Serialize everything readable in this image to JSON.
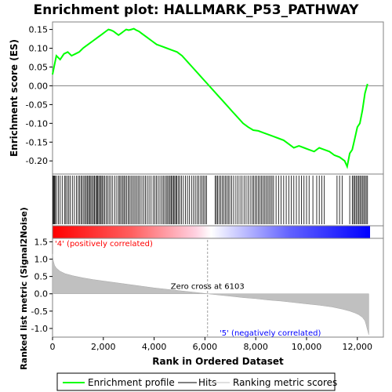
{
  "chart_data": {
    "type": "line",
    "title": "Enrichment plot: HALLMARK_P53_PATHWAY",
    "top_panel": {
      "ylabel": "Enrichment score (ES)",
      "ylim": [
        -0.235,
        0.17
      ],
      "yticks": [
        "0.15",
        "0.10",
        "0.05",
        "0.00",
        "-0.05",
        "-0.10",
        "-0.15",
        "-0.20"
      ],
      "ytick_values": [
        0.15,
        0.1,
        0.05,
        0.0,
        -0.05,
        -0.1,
        -0.15,
        -0.2
      ],
      "series": [
        {
          "name": "Enrichment profile",
          "color": "#00ff00",
          "x": [
            0,
            60,
            150,
            300,
            450,
            600,
            750,
            900,
            1050,
            1200,
            1300,
            1400,
            1500,
            1600,
            1700,
            1800,
            1900,
            2000,
            2100,
            2200,
            2300,
            2400,
            2500,
            2600,
            2700,
            2800,
            2900,
            3000,
            3100,
            3200,
            3300,
            3400,
            3500,
            3700,
            3900,
            4100,
            4300,
            4500,
            4700,
            4900,
            5100,
            5300,
            5500,
            5700,
            5900,
            6100,
            6300,
            6500,
            6700,
            6900,
            7100,
            7300,
            7500,
            7700,
            7900,
            8100,
            8300,
            8500,
            8700,
            8900,
            9100,
            9300,
            9500,
            9700,
            9900,
            10100,
            10300,
            10500,
            10700,
            10900,
            11100,
            11300,
            11500,
            11600,
            11700,
            11800,
            11900,
            12000,
            12100,
            12200,
            12300,
            12400
          ],
          "y": [
            0.03,
            0.05,
            0.08,
            0.07,
            0.085,
            0.09,
            0.08,
            0.085,
            0.09,
            0.1,
            0.105,
            0.11,
            0.115,
            0.12,
            0.125,
            0.13,
            0.135,
            0.14,
            0.145,
            0.15,
            0.148,
            0.145,
            0.14,
            0.135,
            0.14,
            0.145,
            0.15,
            0.148,
            0.15,
            0.152,
            0.148,
            0.145,
            0.14,
            0.13,
            0.12,
            0.11,
            0.105,
            0.1,
            0.095,
            0.09,
            0.08,
            0.065,
            0.05,
            0.035,
            0.02,
            0.005,
            -0.01,
            -0.025,
            -0.04,
            -0.055,
            -0.07,
            -0.085,
            -0.1,
            -0.11,
            -0.118,
            -0.12,
            -0.125,
            -0.13,
            -0.135,
            -0.14,
            -0.145,
            -0.155,
            -0.165,
            -0.16,
            -0.165,
            -0.17,
            -0.175,
            -0.165,
            -0.17,
            -0.175,
            -0.185,
            -0.19,
            -0.2,
            -0.215,
            -0.18,
            -0.17,
            -0.14,
            -0.11,
            -0.1,
            -0.065,
            -0.02,
            0.005
          ]
        }
      ]
    },
    "hits": {
      "name": "Hits",
      "x": [
        20,
        45,
        80,
        110,
        160,
        230,
        300,
        380,
        470,
        520,
        580,
        640,
        700,
        780,
        860,
        940,
        1010,
        1060,
        1120,
        1170,
        1230,
        1280,
        1330,
        1380,
        1420,
        1470,
        1510,
        1560,
        1610,
        1650,
        1700,
        1740,
        1780,
        1820,
        1870,
        1910,
        1950,
        2000,
        2050,
        2110,
        2170,
        2230,
        2300,
        2370,
        2450,
        2530,
        2600,
        2650,
        2700,
        2760,
        2810,
        2860,
        2920,
        2980,
        3030,
        3090,
        3150,
        3210,
        3270,
        3330,
        3390,
        3450,
        3520,
        3590,
        3660,
        3730,
        3800,
        3880,
        3960,
        4030,
        4090,
        4160,
        4230,
        4300,
        4360,
        4420,
        4480,
        4530,
        4580,
        4630,
        4680,
        4720,
        4770,
        4810,
        4860,
        4900,
        4960,
        5010,
        5080,
        5150,
        5230,
        5310,
        5390,
        5470,
        5550,
        5620,
        5690,
        5760,
        5830,
        5890,
        5950,
        6010,
        6060,
        6400,
        6450,
        6500,
        6560,
        6620,
        6680,
        6740,
        6800,
        6860,
        6920,
        6980,
        7050,
        7130,
        7220,
        7300,
        7380,
        7460,
        7540,
        7620,
        7700,
        7780,
        7860,
        7920,
        7980,
        8040,
        8100,
        8160,
        8220,
        8280,
        8340,
        8400,
        8460,
        8520,
        8580,
        8640,
        8700,
        8800,
        8900,
        9000,
        9100,
        9200,
        9300,
        9400,
        9500,
        9600,
        9700,
        9800,
        9900,
        10000,
        10100,
        10250,
        10400,
        10500,
        10600,
        10700,
        11200,
        11300,
        11400,
        11700,
        11800,
        11850,
        11900,
        11950,
        12000,
        12050,
        12100,
        12150,
        12200,
        12250,
        12300,
        12350,
        12400
      ]
    },
    "ranking_panel": {
      "name": "Ranking metric scores",
      "ylabel": "Ranked list metric (Signal2Noise)",
      "ylim": [
        -1.25,
        1.6
      ],
      "yticks": [
        "1.5",
        "1.0",
        "0.5",
        "0.0",
        "-0.5",
        "-1.0"
      ],
      "ytick_values": [
        1.5,
        1.0,
        0.5,
        0.0,
        -0.5,
        -1.0
      ],
      "color": "#c0c0c0",
      "x": [
        0,
        30,
        80,
        150,
        300,
        500,
        800,
        1200,
        1600,
        2000,
        2500,
        3000,
        3500,
        4000,
        4500,
        5000,
        5500,
        6000,
        6103,
        6500,
        7000,
        7500,
        8000,
        8500,
        9000,
        9500,
        10000,
        10500,
        11000,
        11400,
        11700,
        11900,
        12050,
        12200,
        12300,
        12350,
        12400,
        12450
      ],
      "y": [
        1.15,
        0.95,
        0.82,
        0.74,
        0.65,
        0.58,
        0.52,
        0.46,
        0.41,
        0.37,
        0.32,
        0.27,
        0.22,
        0.17,
        0.13,
        0.09,
        0.05,
        0.01,
        0.0,
        -0.03,
        -0.07,
        -0.11,
        -0.14,
        -0.18,
        -0.21,
        -0.25,
        -0.29,
        -0.33,
        -0.38,
        -0.44,
        -0.5,
        -0.55,
        -0.6,
        -0.68,
        -0.78,
        -0.9,
        -1.05,
        -1.18
      ]
    },
    "xlabel": "Rank in Ordered Dataset",
    "xlim": [
      0,
      12500
    ],
    "xticks": [
      "0",
      "2,000",
      "4,000",
      "6,000",
      "8,000",
      "10,000",
      "12,000"
    ],
    "xtick_values": [
      0,
      2000,
      4000,
      6000,
      8000,
      10000,
      12000
    ],
    "zero_cross": 6103,
    "zero_cross_label": "Zero cross at 6103",
    "pos_label": "'4' (positively correlated)",
    "neg_label": "'5' (negatively correlated)",
    "pos_color": "#ff0000",
    "neg_color": "#0000ff",
    "legend": {
      "items": [
        "Enrichment profile",
        "Hits",
        "Ranking metric scores"
      ],
      "colors": [
        "#00ff00",
        "#000000",
        "#c0c0c0"
      ],
      "placement": "bottom"
    }
  }
}
